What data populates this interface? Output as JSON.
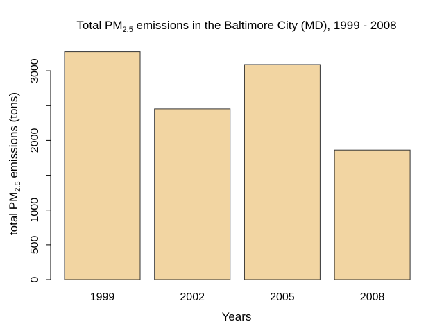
{
  "chart_data": {
    "type": "bar",
    "title": {
      "prefix": "Total PM",
      "subscript": "2.5",
      "suffix": " emissions in the Baltimore City (MD), 1999 - 2008"
    },
    "xlabel": "Years",
    "ylabel": {
      "prefix": "total PM",
      "subscript": "2.5",
      "suffix": " emissions (tons)"
    },
    "categories": [
      "1999",
      "2002",
      "2005",
      "2008"
    ],
    "values": [
      3274,
      2454,
      3091,
      1862
    ],
    "ylim": [
      0,
      3300
    ],
    "yticks": [
      0,
      500,
      1000,
      2000,
      3000
    ],
    "ytick_marks": [
      0,
      500,
      1000,
      1500,
      2000,
      2500,
      3000
    ],
    "bar_color": "#F2D5A2",
    "bar_border": "#333333",
    "grid": false,
    "legend": "none"
  }
}
